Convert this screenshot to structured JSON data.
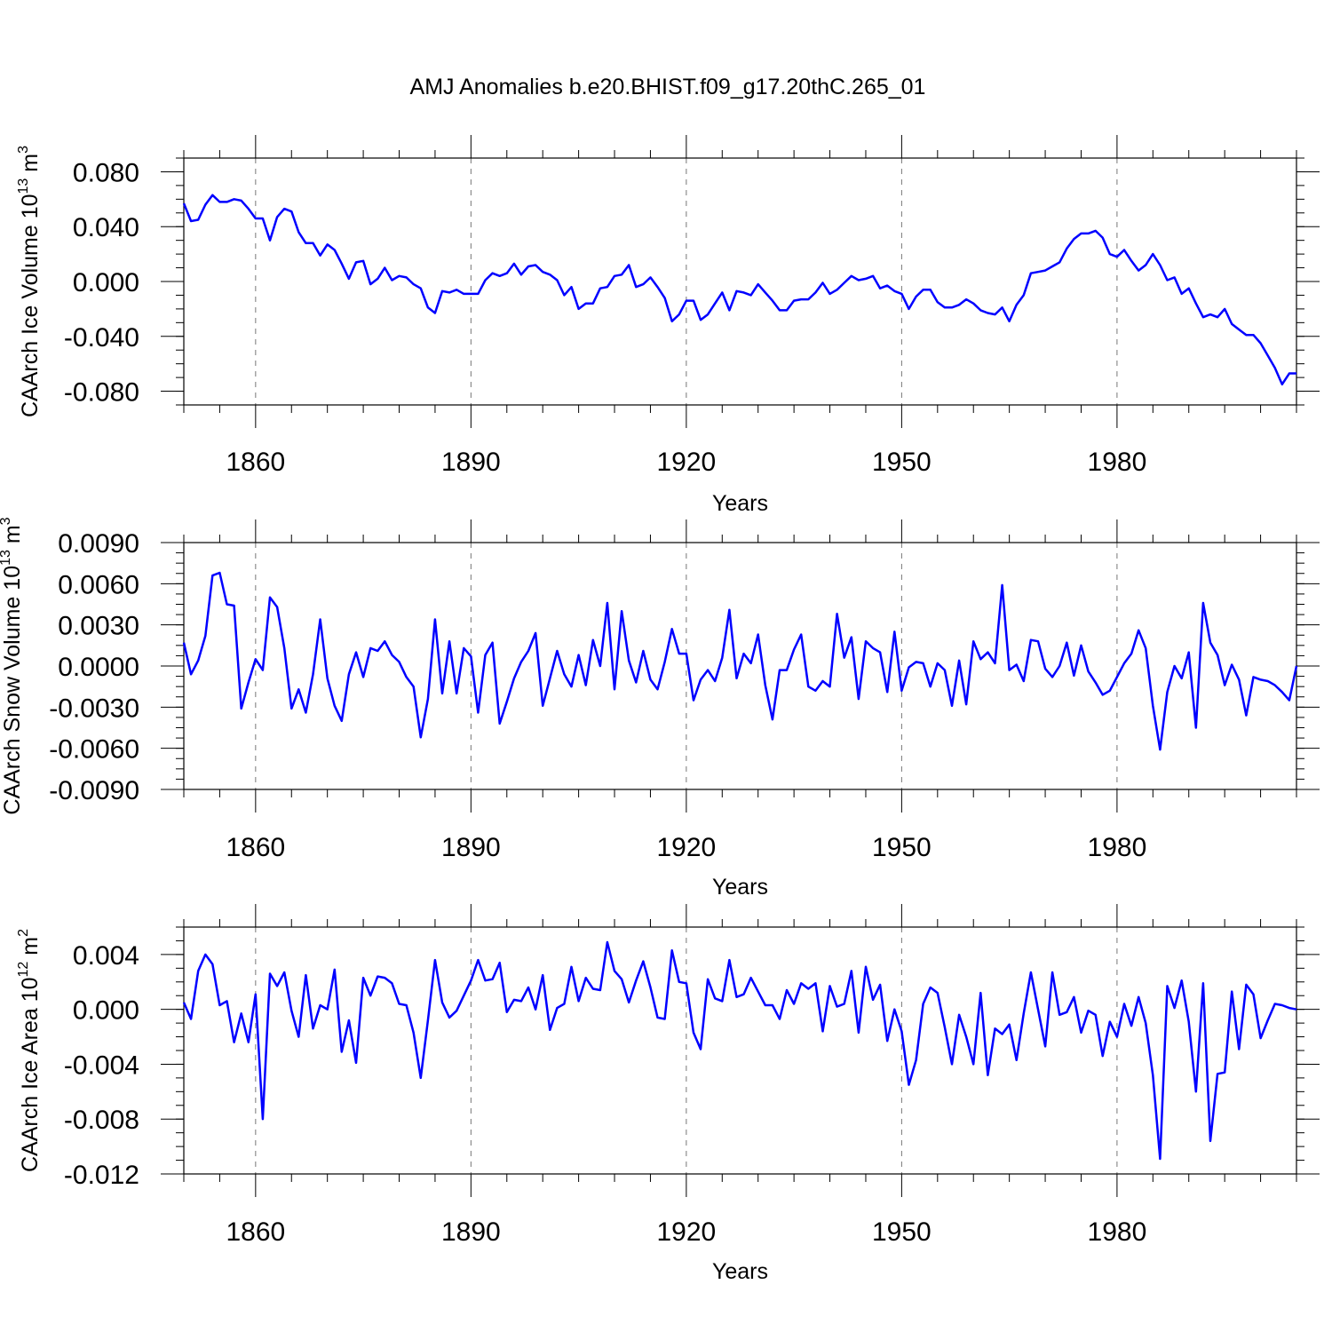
{
  "title": "AMJ Anomalies b.e20.BHIST.f09_g17.20thC.265_01",
  "chart_data": [
    {
      "type": "line",
      "ylabel": "CAArch Ice Volume 10",
      "ylabel_exp": "13",
      "ylabel_unit": " m",
      "ylabel_unit_exp": "3",
      "xlabel": "Years",
      "xlim": [
        1850,
        2005
      ],
      "ylim": [
        -0.09,
        0.09
      ],
      "yticks": [
        -0.08,
        -0.04,
        0.0,
        0.04,
        0.08
      ],
      "ytick_labels": [
        "-0.080",
        "-0.040",
        "0.000",
        "0.040",
        "0.080"
      ],
      "xticks": [
        1860,
        1890,
        1920,
        1950,
        1980
      ],
      "xtick_labels": [
        "1860",
        "1890",
        "1920",
        "1950",
        "1980"
      ],
      "line_color": "#0000ff",
      "x_start": 1850,
      "values": [
        0.057,
        0.044,
        0.045,
        0.056,
        0.063,
        0.058,
        0.058,
        0.06,
        0.059,
        0.053,
        0.046,
        0.046,
        0.03,
        0.047,
        0.053,
        0.051,
        0.036,
        0.028,
        0.028,
        0.019,
        0.027,
        0.023,
        0.013,
        0.002,
        0.014,
        0.015,
        -0.002,
        0.002,
        0.01,
        0.001,
        0.004,
        0.003,
        -0.002,
        -0.005,
        -0.019,
        -0.023,
        -0.007,
        -0.008,
        -0.006,
        -0.009,
        -0.009,
        -0.009,
        0.001,
        0.006,
        0.004,
        0.006,
        0.013,
        0.005,
        0.011,
        0.012,
        0.007,
        0.005,
        0.001,
        -0.01,
        -0.004,
        -0.02,
        -0.016,
        -0.016,
        -0.005,
        -0.004,
        0.004,
        0.005,
        0.012,
        -0.004,
        -0.002,
        0.003,
        -0.004,
        -0.012,
        -0.029,
        -0.024,
        -0.014,
        -0.014,
        -0.028,
        -0.024,
        -0.016,
        -0.008,
        -0.021,
        -0.007,
        -0.008,
        -0.01,
        -0.002,
        -0.008,
        -0.014,
        -0.021,
        -0.021,
        -0.014,
        -0.013,
        -0.013,
        -0.008,
        -0.001,
        -0.009,
        -0.006,
        -0.001,
        0.004,
        0.001,
        0.002,
        0.004,
        -0.005,
        -0.003,
        -0.007,
        -0.009,
        -0.02,
        -0.011,
        -0.006,
        -0.006,
        -0.015,
        -0.019,
        -0.019,
        -0.017,
        -0.013,
        -0.016,
        -0.021,
        -0.023,
        -0.024,
        -0.019,
        -0.029,
        -0.017,
        -0.01,
        0.006,
        0.007,
        0.008,
        0.011,
        0.014,
        0.024,
        0.031,
        0.035,
        0.035,
        0.037,
        0.032,
        0.02,
        0.018,
        0.023,
        0.015,
        0.008,
        0.012,
        0.02,
        0.012,
        0.001,
        0.003,
        -0.009,
        -0.005,
        -0.016,
        -0.026,
        -0.024,
        -0.026,
        -0.02,
        -0.031,
        -0.035,
        -0.039,
        -0.039,
        -0.045,
        -0.054,
        -0.063,
        -0.075,
        -0.067,
        -0.067
      ]
    },
    {
      "type": "line",
      "ylabel": "CAArch Snow Volume 10",
      "ylabel_exp": "13",
      "ylabel_unit": " m",
      "ylabel_unit_exp": "3",
      "xlabel": "Years",
      "xlim": [
        1850,
        2005
      ],
      "ylim": [
        -0.009,
        0.009
      ],
      "yticks": [
        -0.009,
        -0.006,
        -0.003,
        0.0,
        0.003,
        0.006,
        0.009
      ],
      "ytick_labels": [
        "-0.0090",
        "-0.0060",
        "-0.0030",
        "0.0000",
        "0.0030",
        "0.0060",
        "0.0090"
      ],
      "xticks": [
        1860,
        1890,
        1920,
        1950,
        1980
      ],
      "xtick_labels": [
        "1860",
        "1890",
        "1920",
        "1950",
        "1980"
      ],
      "line_color": "#0000ff",
      "x_start": 1850,
      "values": [
        0.0017,
        -0.0006,
        0.0004,
        0.0022,
        0.0066,
        0.0068,
        0.0045,
        0.0044,
        -0.0031,
        -0.0012,
        0.0005,
        -0.0003,
        0.005,
        0.0043,
        0.0013,
        -0.0031,
        -0.0017,
        -0.0034,
        -0.0006,
        0.0034,
        -0.0009,
        -0.0029,
        -0.004,
        -0.0006,
        0.001,
        -0.0008,
        0.0013,
        0.0011,
        0.0018,
        0.0008,
        0.0003,
        -0.0008,
        -0.0015,
        -0.0052,
        -0.0024,
        0.0034,
        -0.002,
        0.0018,
        -0.002,
        0.0013,
        0.0007,
        -0.0034,
        0.0008,
        0.0017,
        -0.0042,
        -0.0026,
        -0.0009,
        0.0003,
        0.0011,
        0.0024,
        -0.0029,
        -0.0009,
        0.0011,
        -0.0006,
        -0.0015,
        0.0008,
        -0.0014,
        0.0019,
        0.0,
        0.0046,
        -0.0017,
        0.004,
        0.0004,
        -0.0012,
        0.0011,
        -0.001,
        -0.0017,
        0.0003,
        0.0027,
        0.0009,
        0.0009,
        -0.0025,
        -0.001,
        -0.0003,
        -0.0011,
        0.0006,
        0.0041,
        -0.0009,
        0.0009,
        0.0002,
        0.0023,
        -0.0014,
        -0.0039,
        -0.0003,
        -0.0003,
        0.0012,
        0.0023,
        -0.0015,
        -0.0018,
        -0.0011,
        -0.0015,
        0.0038,
        0.0006,
        0.0021,
        -0.0024,
        0.0018,
        0.0013,
        0.001,
        -0.0019,
        0.0025,
        -0.0018,
        -0.0001,
        0.0003,
        0.0002,
        -0.0015,
        0.0002,
        -0.0003,
        -0.0029,
        0.0004,
        -0.0028,
        0.0018,
        0.0005,
        0.001,
        0.0002,
        0.0059,
        -0.0003,
        0.0001,
        -0.0011,
        0.0019,
        0.0018,
        -0.0002,
        -0.0008,
        0.0,
        0.0017,
        -0.0007,
        0.0015,
        -0.0004,
        -0.0012,
        -0.0021,
        -0.0018,
        -0.0008,
        0.0002,
        0.0009,
        0.0026,
        0.0013,
        -0.0029,
        -0.0061,
        -0.0019,
        0.0,
        -0.0009,
        0.001,
        -0.0045,
        0.0046,
        0.0017,
        0.0008,
        -0.0014,
        0.0001,
        -0.001,
        -0.0036,
        -0.0008,
        -0.001,
        -0.0011,
        -0.0014,
        -0.0019,
        -0.0025,
        0.0
      ]
    },
    {
      "type": "line",
      "ylabel": "CAArch Ice Area 10",
      "ylabel_exp": "12",
      "ylabel_unit": " m",
      "ylabel_unit_exp": "2",
      "xlabel": "Years",
      "xlim": [
        1850,
        2005
      ],
      "ylim": [
        -0.012,
        0.006
      ],
      "yticks": [
        -0.012,
        -0.008,
        -0.004,
        0.0,
        0.004
      ],
      "ytick_labels": [
        "-0.012",
        "-0.008",
        "-0.004",
        "0.000",
        "0.004"
      ],
      "xticks": [
        1860,
        1890,
        1920,
        1950,
        1980
      ],
      "xtick_labels": [
        "1860",
        "1890",
        "1920",
        "1950",
        "1980"
      ],
      "line_color": "#0000ff",
      "x_start": 1850,
      "values": [
        0.0005,
        -0.0007,
        0.0028,
        0.004,
        0.0033,
        0.0003,
        0.0006,
        -0.0024,
        -0.0003,
        -0.0024,
        0.0011,
        -0.008,
        0.0026,
        0.0017,
        0.0027,
        -0.0001,
        -0.002,
        0.0025,
        -0.0014,
        0.0003,
        0.0,
        0.0029,
        -0.0031,
        -0.0008,
        -0.0039,
        0.0023,
        0.001,
        0.0024,
        0.0023,
        0.0019,
        0.0004,
        0.0003,
        -0.0017,
        -0.005,
        -0.0008,
        0.0036,
        0.0005,
        -0.0006,
        -0.0001,
        0.001,
        0.0021,
        0.0036,
        0.0021,
        0.0022,
        0.0034,
        -0.0002,
        0.0007,
        0.0006,
        0.0016,
        0.0,
        0.0025,
        -0.0015,
        0.0001,
        0.0004,
        0.0031,
        0.0006,
        0.0023,
        0.0015,
        0.0014,
        0.0049,
        0.0028,
        0.0022,
        0.0005,
        0.0021,
        0.0035,
        0.0016,
        -0.0006,
        -0.0007,
        0.0043,
        0.002,
        0.0019,
        -0.0017,
        -0.0029,
        0.0022,
        0.0008,
        0.0006,
        0.0036,
        0.0009,
        0.0011,
        0.0023,
        0.0013,
        0.0003,
        0.0003,
        -0.0007,
        0.0014,
        0.0004,
        0.0019,
        0.0015,
        0.0019,
        -0.0016,
        0.0017,
        0.0002,
        0.0004,
        0.0028,
        -0.0017,
        0.0031,
        0.0007,
        0.0018,
        -0.0023,
        0.0,
        -0.0016,
        -0.0055,
        -0.0037,
        0.0004,
        0.0016,
        0.0012,
        -0.0013,
        -0.004,
        -0.0004,
        -0.002,
        -0.004,
        0.0012,
        -0.0048,
        -0.0014,
        -0.0018,
        -0.0011,
        -0.0037,
        -0.0003,
        0.0027,
        0.0,
        -0.0027,
        0.0027,
        -0.0004,
        -0.0002,
        0.0009,
        -0.0017,
        -0.0001,
        -0.0004,
        -0.0034,
        -0.0009,
        -0.002,
        0.0004,
        -0.0012,
        0.0009,
        -0.001,
        -0.0048,
        -0.0109,
        0.0017,
        0.0001,
        0.0021,
        -0.0009,
        -0.006,
        0.0019,
        -0.0096,
        -0.0047,
        -0.0046,
        0.0013,
        -0.0029,
        0.0018,
        0.0011,
        -0.0021,
        -0.0008,
        0.0004,
        0.0003,
        0.0001,
        0.0
      ]
    }
  ]
}
